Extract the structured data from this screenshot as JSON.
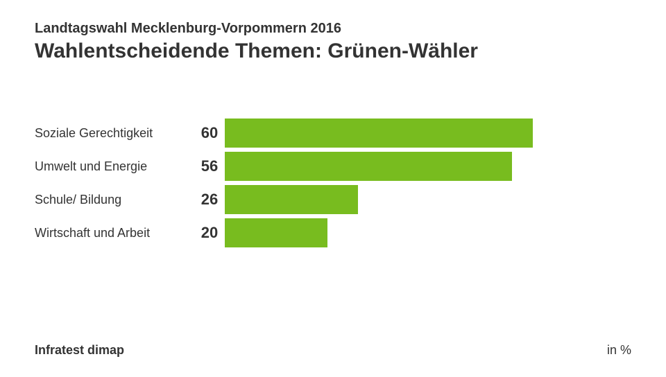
{
  "header": {
    "subtitle": "Landtagswahl Mecklenburg-Vorpommern 2016",
    "title": "Wahlentscheidende Themen: Grünen-Wähler"
  },
  "chart": {
    "type": "bar",
    "bar_color": "#78bc1f",
    "background_color": "#ffffff",
    "max_value": 100,
    "bar_scale": 7.4,
    "label_fontsize": 18,
    "value_fontsize": 22,
    "text_color": "#333333",
    "rows": [
      {
        "label": "Soziale Gerechtigkeit",
        "value": 60
      },
      {
        "label": "Umwelt und Energie",
        "value": 56
      },
      {
        "label": "Schule/ Bildung",
        "value": 26
      },
      {
        "label": "Wirtschaft und Arbeit",
        "value": 20
      }
    ]
  },
  "footer": {
    "source": "Infratest dimap",
    "unit": "in %"
  }
}
